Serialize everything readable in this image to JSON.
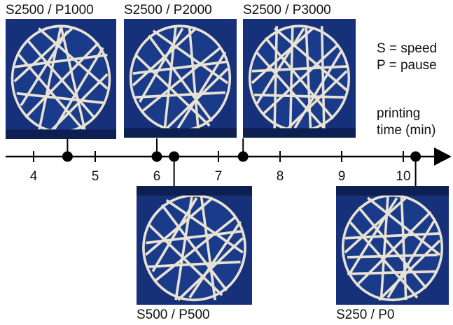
{
  "legend": {
    "speed": "S = speed",
    "pause": "P = pause"
  },
  "axis": {
    "title_line1": "printing",
    "title_line2": "time (min)",
    "ticks": [
      4,
      5,
      6,
      7,
      8,
      9,
      10
    ],
    "range": [
      3.6,
      11.0
    ]
  },
  "events": [
    {
      "label": "S2500 / P1000",
      "time": 4.55,
      "side": "top"
    },
    {
      "label": "S2500 / P2000",
      "time": 6.0,
      "side": "top"
    },
    {
      "label": "S500 / P500",
      "time": 6.28,
      "side": "bottom"
    },
    {
      "label": "S2500 / P3000",
      "time": 7.4,
      "side": "top"
    },
    {
      "label": "S250 / P0",
      "time": 10.2,
      "side": "bottom"
    }
  ],
  "colors": {
    "photo_bg": "#142a6b",
    "lattice": "#f3ecd8",
    "axis": "#000000"
  }
}
